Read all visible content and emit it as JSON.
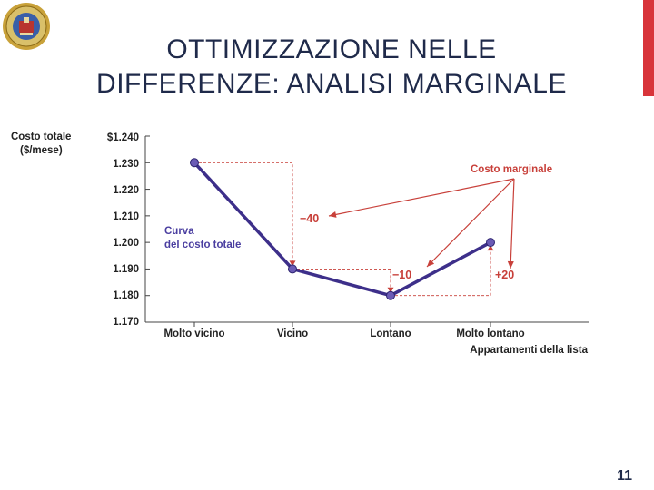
{
  "slide": {
    "title_line1": "OTTIMIZZAZIONE NELLE",
    "title_line2": "DIFFERENZE: ANALISI MARGINALE",
    "page_number": "11",
    "accent_color": "#d8343a",
    "title_color": "#1f2a4a",
    "logo_icon": "university-seal-icon"
  },
  "chart_data": {
    "type": "line",
    "ylabel_line1": "Costo totale",
    "ylabel_line2": "($/mese)",
    "xlabel": "Appartamenti della lista",
    "categories": [
      "Molto vicino",
      "Vicino",
      "Lontano",
      "Molto lontano"
    ],
    "y_ticks": [
      "$1.240",
      "1.230",
      "1.220",
      "1.210",
      "1.200",
      "1.190",
      "1.180",
      "1.170"
    ],
    "ylim": [
      1170,
      1240
    ],
    "series": [
      {
        "values": [
          1230,
          1190,
          1180,
          1200
        ],
        "color": "#3d2f8a"
      }
    ],
    "curve_label_line1": "Curva",
    "curve_label_line2": "del costo totale",
    "marginal_label": "Costo marginale",
    "marginal_values": [
      "−40",
      "−10",
      "+20"
    ],
    "annotation_color": "#c8403a",
    "marker_color": "#6b5bb5",
    "grid": false
  }
}
